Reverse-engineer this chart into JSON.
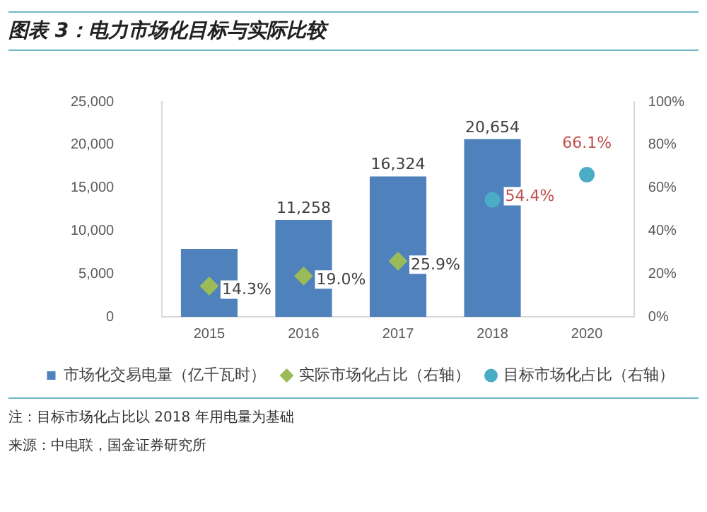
{
  "chart_data": {
    "type": "bar",
    "title": "图表 3：电力市场化目标与实际比较",
    "categories": [
      "2015",
      "2016",
      "2017",
      "2018",
      "2020"
    ],
    "series": [
      {
        "name": "市场化交易电量（亿千瓦时）",
        "color": "#4f81bd",
        "values": [
          7900,
          11258,
          16324,
          20654,
          null
        ],
        "value_labels": [
          null,
          "11,258",
          "16,324",
          "20,654",
          null
        ]
      },
      {
        "name": "实际市场化占比（右轴）",
        "type": "scatter",
        "axis": "y2",
        "marker": "diamond",
        "color": "#9bbb59",
        "values": [
          14.3,
          19.0,
          25.9,
          null,
          null
        ],
        "value_labels": [
          "14.3%",
          "19.0%",
          "25.9%",
          null,
          null
        ]
      },
      {
        "name": "目标市场化占比（右轴）",
        "type": "scatter",
        "axis": "y2",
        "marker": "circle",
        "color": "#4bacc6",
        "values": [
          null,
          null,
          null,
          54.4,
          66.1
        ],
        "value_labels": [
          null,
          null,
          null,
          "54.4%",
          "66.1%"
        ]
      }
    ],
    "ylim": [
      0,
      25000
    ],
    "yticks": [
      {
        "value": 0,
        "label": "0"
      },
      {
        "value": 5000,
        "label": "5,000"
      },
      {
        "value": 10000,
        "label": "10,000"
      },
      {
        "value": 15000,
        "label": "15,000"
      },
      {
        "value": 20000,
        "label": "20,000"
      },
      {
        "value": 25000,
        "label": "25,000"
      }
    ],
    "y2lim": [
      0,
      100
    ],
    "y2ticks": [
      {
        "value": 0,
        "label": "0%"
      },
      {
        "value": 20,
        "label": "20%"
      },
      {
        "value": 40,
        "label": "40%"
      },
      {
        "value": 60,
        "label": "60%"
      },
      {
        "value": 80,
        "label": "80%"
      },
      {
        "value": 100,
        "label": "100%"
      }
    ],
    "grid": false,
    "legend": "bottom",
    "annotations": [
      "注：目标市场化占比以 2018 年用电量为基础",
      "来源：中电联，国金证券研究所"
    ]
  }
}
